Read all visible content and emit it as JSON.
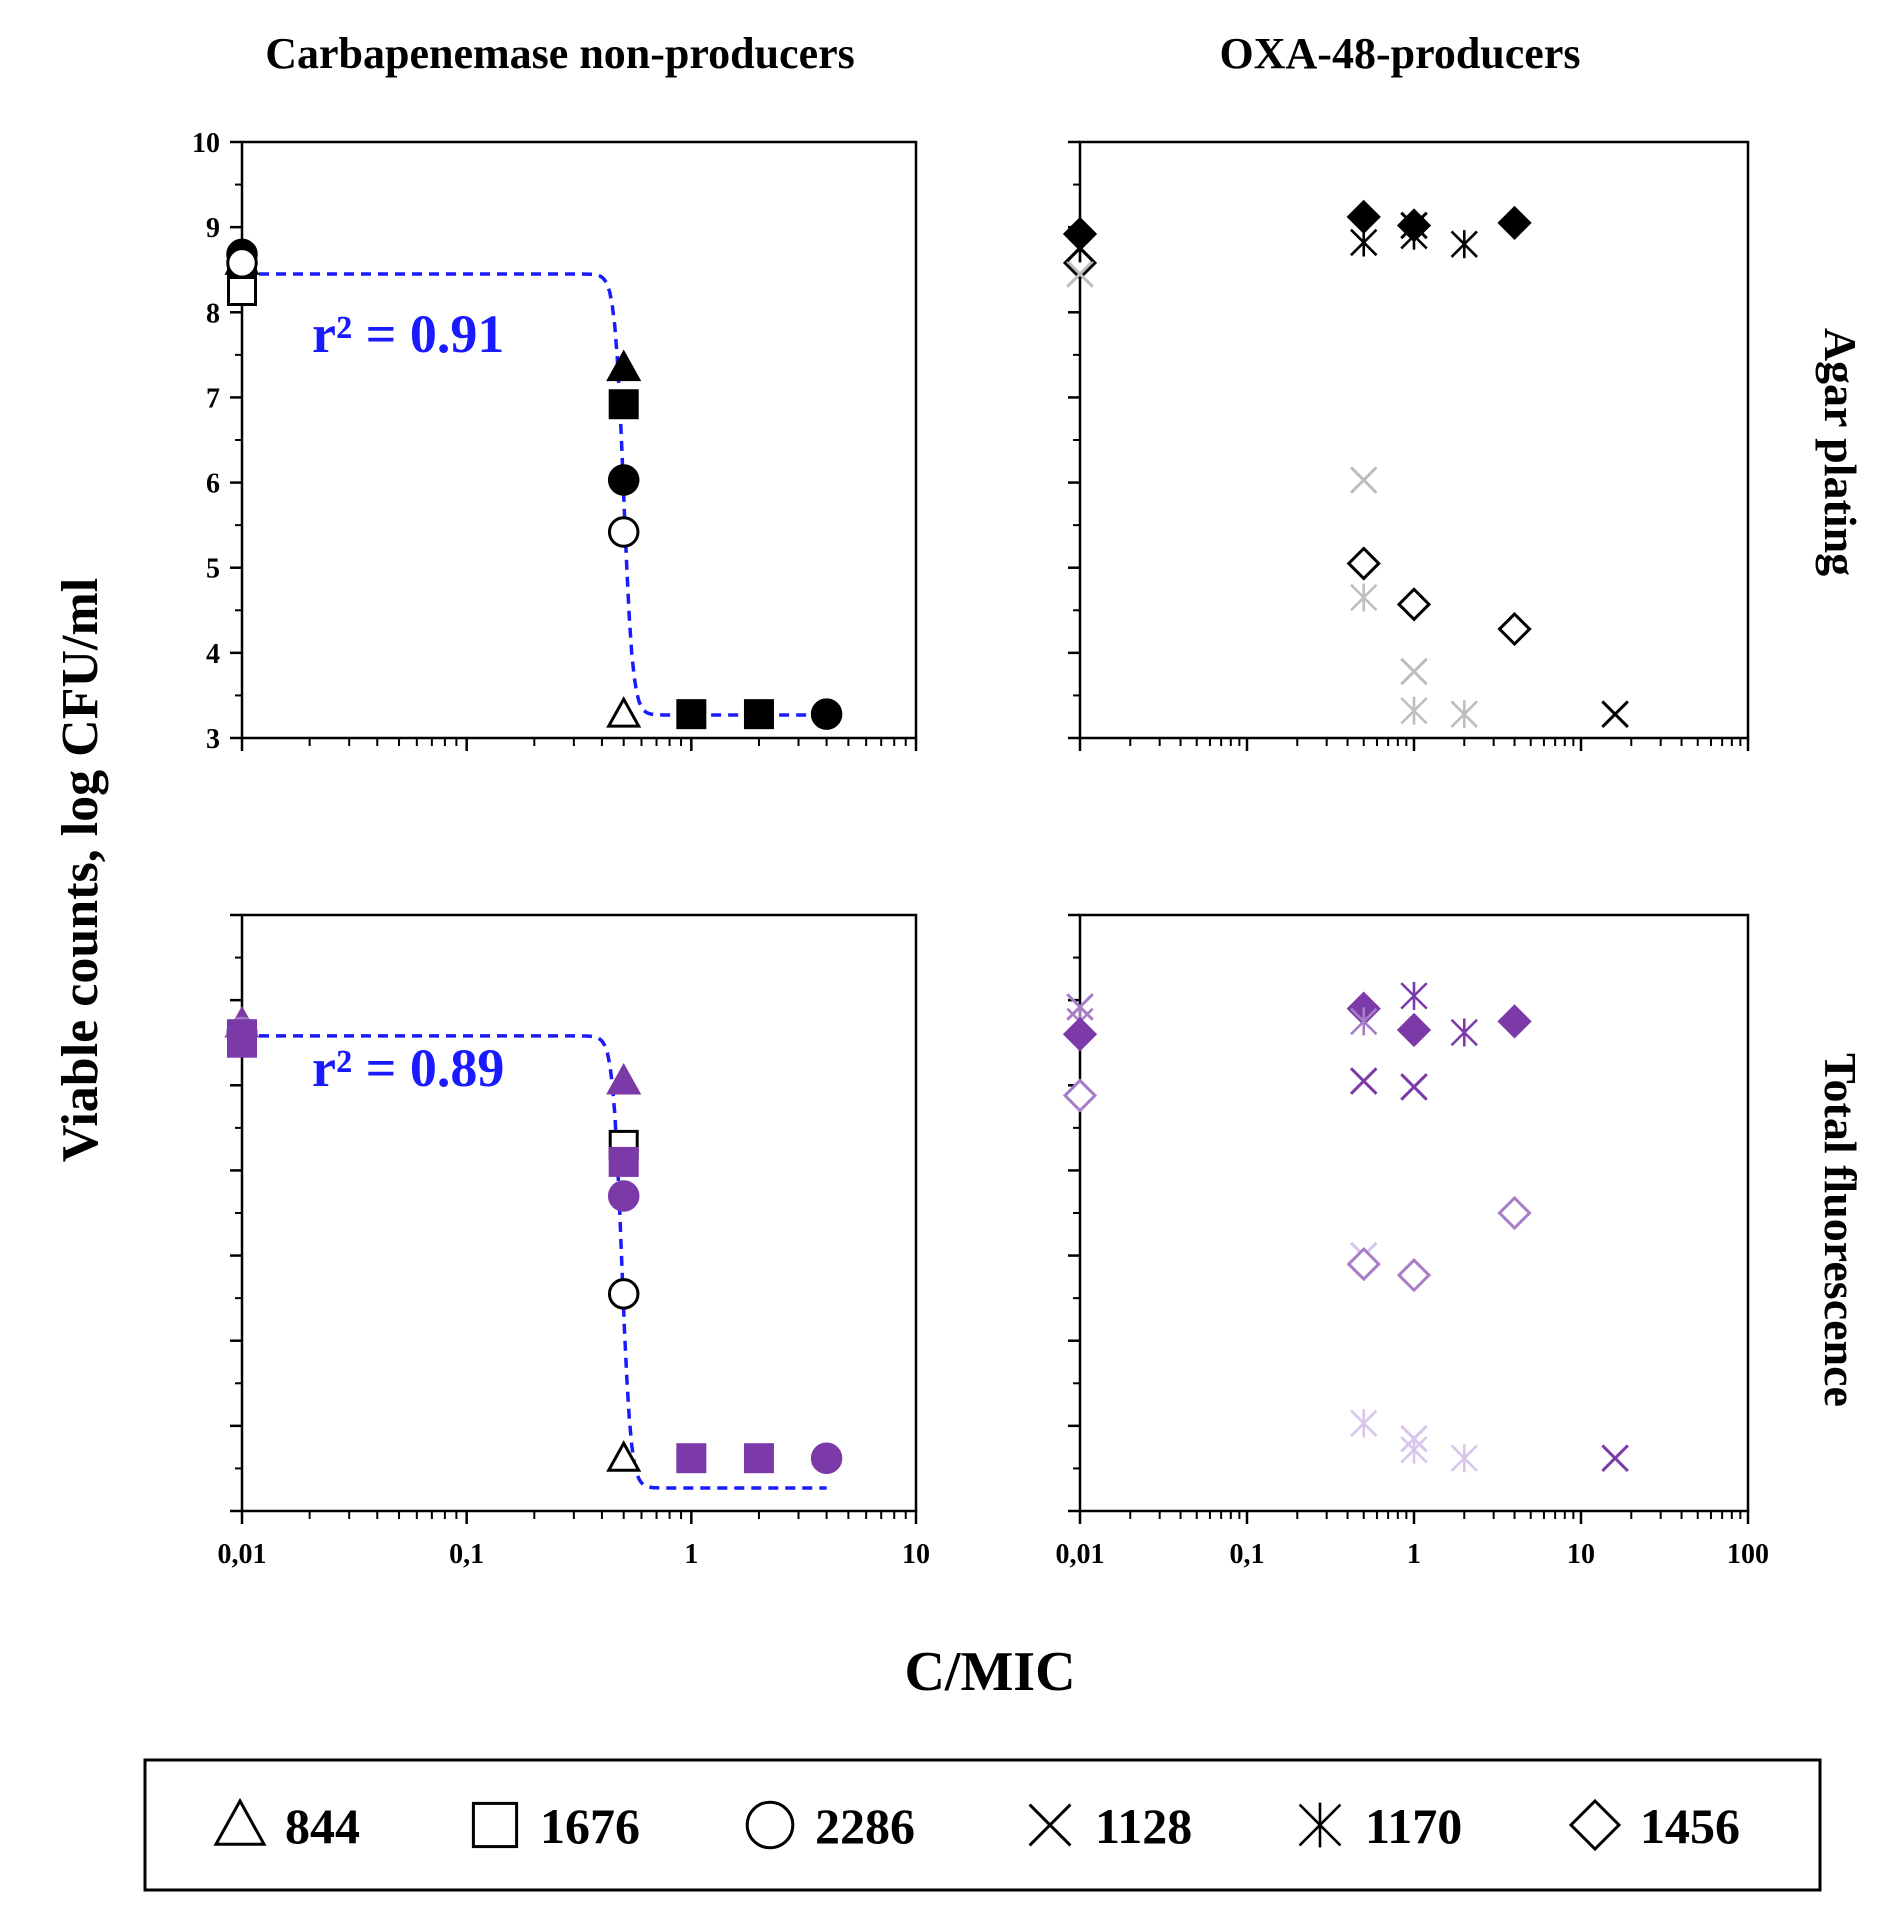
{
  "figure": {
    "col_titles": [
      "Carbapenemase  non-producers",
      "OXA-48-producers"
    ],
    "row_titles": [
      "Agar plating",
      "Total fluorescence"
    ],
    "ylabel": "Viable counts, log CFU/ml",
    "xlabel": "C/MIC",
    "legend": [
      {
        "label": "844",
        "marker": "triangle-open"
      },
      {
        "label": "1676",
        "marker": "square-open"
      },
      {
        "label": "2286",
        "marker": "circle-open"
      },
      {
        "label": "1128",
        "marker": "x"
      },
      {
        "label": "1170",
        "marker": "asterisk"
      },
      {
        "label": "1456",
        "marker": "diamond-open"
      }
    ]
  },
  "colors": {
    "fit_line": "#1a1aff",
    "black": "#000000",
    "gray": "#bdbdbd",
    "purple": "#7b3aa8",
    "purple_light": "#a77dc7",
    "purple_pale": "#d9c6ea"
  },
  "chart_data": [
    {
      "id": "top-left",
      "type": "scatter",
      "title": "Carbapenemase  non-producers",
      "xscale": "log",
      "xlim": [
        0.01,
        10
      ],
      "ylim": [
        3,
        10
      ],
      "yticks": [
        3,
        4,
        5,
        6,
        7,
        8,
        9,
        10
      ],
      "show_y_ticklabels": true,
      "show_x_ticklabels": false,
      "fit": {
        "r2_label": "r² = 0.91",
        "top": 8.45,
        "bottom": 3.27,
        "ec50": 0.5,
        "slope": 22,
        "color": "fit_line"
      },
      "points": [
        {
          "strain": "844",
          "marker": "triangle",
          "fill": "black",
          "x": 0.01,
          "y": 8.6
        },
        {
          "strain": "1676",
          "marker": "square",
          "fill": "black",
          "x": 0.01,
          "y": 8.35
        },
        {
          "strain": "1676",
          "marker": "square",
          "fill": "white",
          "x": 0.01,
          "y": 8.25
        },
        {
          "strain": "2286",
          "marker": "circle",
          "fill": "black",
          "x": 0.01,
          "y": 8.68
        },
        {
          "strain": "2286",
          "marker": "circle",
          "fill": "white",
          "x": 0.01,
          "y": 8.58
        },
        {
          "strain": "844",
          "marker": "triangle",
          "fill": "black",
          "x": 0.5,
          "y": 7.35
        },
        {
          "strain": "1676",
          "marker": "square",
          "fill": "black",
          "x": 0.5,
          "y": 6.92
        },
        {
          "strain": "2286",
          "marker": "circle",
          "fill": "black",
          "x": 0.5,
          "y": 6.03
        },
        {
          "strain": "2286",
          "marker": "circle",
          "fill": "white",
          "x": 0.5,
          "y": 5.42
        },
        {
          "strain": "844",
          "marker": "triangle",
          "fill": "white",
          "x": 0.5,
          "y": 3.28
        },
        {
          "strain": "1676",
          "marker": "square",
          "fill": "black",
          "x": 1,
          "y": 3.28
        },
        {
          "strain": "1676",
          "marker": "square",
          "fill": "black",
          "x": 2,
          "y": 3.28
        },
        {
          "strain": "2286",
          "marker": "circle",
          "fill": "black",
          "x": 4,
          "y": 3.28
        }
      ]
    },
    {
      "id": "top-right",
      "type": "scatter",
      "title": "OXA-48-producers",
      "row_title": "Agar plating",
      "xscale": "log",
      "xlim": [
        0.01,
        100
      ],
      "ylim": [
        3,
        10
      ],
      "yticks": [
        3,
        4,
        5,
        6,
        7,
        8,
        9,
        10
      ],
      "show_y_ticklabels": false,
      "show_x_ticklabels": false,
      "points": [
        {
          "strain": "1456",
          "marker": "diamond",
          "fill": "black",
          "x": 0.01,
          "y": 8.92
        },
        {
          "strain": "1456",
          "marker": "diamond",
          "fill": "white",
          "x": 0.01,
          "y": 8.58
        },
        {
          "strain": "1128",
          "marker": "x",
          "color": "gray",
          "x": 0.01,
          "y": 8.45
        },
        {
          "strain": "1170",
          "marker": "asterisk",
          "color": "black",
          "x": 0.01,
          "y": 8.75
        },
        {
          "strain": "1456",
          "marker": "diamond",
          "fill": "black",
          "x": 0.5,
          "y": 9.12
        },
        {
          "strain": "1170",
          "marker": "asterisk",
          "color": "black",
          "x": 0.5,
          "y": 8.82
        },
        {
          "strain": "1456",
          "marker": "diamond",
          "fill": "black",
          "x": 1,
          "y": 9.02
        },
        {
          "strain": "1128",
          "marker": "x",
          "color": "black",
          "x": 1,
          "y": 9.02
        },
        {
          "strain": "1170",
          "marker": "asterisk",
          "color": "black",
          "x": 1,
          "y": 8.9
        },
        {
          "strain": "1170",
          "marker": "asterisk",
          "color": "black",
          "x": 2,
          "y": 8.8
        },
        {
          "strain": "1456",
          "marker": "diamond",
          "fill": "black",
          "x": 4,
          "y": 9.05
        },
        {
          "strain": "1128",
          "marker": "x",
          "color": "gray",
          "x": 0.5,
          "y": 6.03
        },
        {
          "strain": "1456",
          "marker": "diamond",
          "fill": "white",
          "x": 0.5,
          "y": 5.05
        },
        {
          "strain": "1170",
          "marker": "asterisk",
          "color": "gray",
          "x": 0.5,
          "y": 4.65
        },
        {
          "strain": "1456",
          "marker": "diamond",
          "fill": "white",
          "x": 1,
          "y": 4.57
        },
        {
          "strain": "1128",
          "marker": "x",
          "color": "gray",
          "x": 1,
          "y": 3.78
        },
        {
          "strain": "1170",
          "marker": "asterisk",
          "color": "gray",
          "x": 1,
          "y": 3.32
        },
        {
          "strain": "1456",
          "marker": "diamond",
          "fill": "white",
          "x": 4,
          "y": 4.28
        },
        {
          "strain": "1170",
          "marker": "asterisk",
          "color": "gray",
          "x": 2,
          "y": 3.28
        },
        {
          "strain": "1128",
          "marker": "x",
          "color": "black",
          "x": 16,
          "y": 3.28
        }
      ]
    },
    {
      "id": "bottom-left",
      "type": "scatter",
      "xscale": "log",
      "xlim": [
        0.01,
        10
      ],
      "xticklabels": [
        "0,01",
        "0,1",
        "1",
        "10"
      ],
      "ylim": [
        3,
        10
      ],
      "yticks": [
        3,
        4,
        5,
        6,
        7,
        8,
        9,
        10
      ],
      "show_y_ticklabels": false,
      "show_x_ticklabels": true,
      "fit": {
        "r2_label": "r² = 0.89",
        "top": 8.58,
        "bottom": 3.27,
        "ec50": 0.49,
        "slope": 22,
        "color": "fit_line"
      },
      "points": [
        {
          "strain": "844",
          "marker": "triangle",
          "fill": "purple",
          "x": 0.01,
          "y": 8.72
        },
        {
          "strain": "2286",
          "marker": "circle",
          "fill": "purple_light",
          "x": 0.01,
          "y": 8.62
        },
        {
          "strain": "1676",
          "marker": "square",
          "fill": "purple",
          "x": 0.01,
          "y": 8.5
        },
        {
          "strain": "1676",
          "marker": "square",
          "fill": "purple",
          "x": 0.01,
          "y": 8.6
        },
        {
          "strain": "844",
          "marker": "triangle",
          "fill": "purple",
          "x": 0.5,
          "y": 8.05
        },
        {
          "strain": "1676",
          "marker": "square",
          "fill": "white",
          "x": 0.5,
          "y": 7.3
        },
        {
          "strain": "1676",
          "marker": "square",
          "fill": "purple",
          "x": 0.5,
          "y": 7.1
        },
        {
          "strain": "2286",
          "marker": "circle",
          "fill": "purple",
          "x": 0.5,
          "y": 6.7
        },
        {
          "strain": "2286",
          "marker": "circle",
          "fill": "white",
          "x": 0.5,
          "y": 5.55
        },
        {
          "strain": "844",
          "marker": "triangle",
          "fill": "white",
          "x": 0.5,
          "y": 3.62
        },
        {
          "strain": "1676",
          "marker": "square",
          "fill": "purple",
          "x": 1,
          "y": 3.62
        },
        {
          "strain": "1676",
          "marker": "square",
          "fill": "purple",
          "x": 2,
          "y": 3.62
        },
        {
          "strain": "2286",
          "marker": "circle",
          "fill": "purple",
          "x": 4,
          "y": 3.62
        }
      ]
    },
    {
      "id": "bottom-right",
      "type": "scatter",
      "row_title": "Total fluorescence",
      "xscale": "log",
      "xlim": [
        0.01,
        100
      ],
      "xticklabels": [
        "0,01",
        "0,1",
        "1",
        "10",
        "100"
      ],
      "ylim": [
        3,
        10
      ],
      "yticks": [
        3,
        4,
        5,
        6,
        7,
        8,
        9,
        10
      ],
      "show_y_ticklabels": false,
      "show_x_ticklabels": true,
      "points": [
        {
          "strain": "1128",
          "marker": "x",
          "color": "purple_light",
          "x": 0.01,
          "y": 8.92
        },
        {
          "strain": "1170",
          "marker": "asterisk",
          "color": "purple_light",
          "x": 0.01,
          "y": 8.75
        },
        {
          "strain": "1456",
          "marker": "diamond",
          "fill": "purple",
          "x": 0.01,
          "y": 8.6
        },
        {
          "strain": "1456",
          "marker": "diamond",
          "fill": "white",
          "stroke": "purple_light",
          "x": 0.01,
          "y": 7.88
        },
        {
          "strain": "1456",
          "marker": "diamond",
          "fill": "purple",
          "x": 0.5,
          "y": 8.9
        },
        {
          "strain": "1170",
          "marker": "asterisk",
          "color": "purple_light",
          "x": 0.5,
          "y": 8.75
        },
        {
          "strain": "1128",
          "marker": "x",
          "color": "purple",
          "x": 0.5,
          "y": 8.05
        },
        {
          "strain": "1170",
          "marker": "asterisk",
          "color": "purple",
          "x": 1,
          "y": 9.05
        },
        {
          "strain": "1456",
          "marker": "diamond",
          "fill": "purple",
          "x": 1,
          "y": 8.65
        },
        {
          "strain": "1128",
          "marker": "x",
          "color": "purple",
          "x": 1,
          "y": 7.98
        },
        {
          "strain": "1170",
          "marker": "asterisk",
          "color": "purple",
          "x": 2,
          "y": 8.62
        },
        {
          "strain": "1456",
          "marker": "diamond",
          "fill": "purple",
          "x": 4,
          "y": 8.75
        },
        {
          "strain": "1456",
          "marker": "diamond",
          "fill": "white",
          "stroke": "purple_light",
          "x": 4,
          "y": 6.5
        },
        {
          "strain": "1128",
          "marker": "x",
          "color": "purple_pale",
          "x": 0.5,
          "y": 6.0
        },
        {
          "strain": "1456",
          "marker": "diamond",
          "fill": "white",
          "stroke": "purple_light",
          "x": 0.5,
          "y": 5.9
        },
        {
          "strain": "1456",
          "marker": "diamond",
          "fill": "white",
          "stroke": "purple_light",
          "x": 1,
          "y": 5.77
        },
        {
          "strain": "1170",
          "marker": "asterisk",
          "color": "purple_pale",
          "x": 0.5,
          "y": 4.03
        },
        {
          "strain": "1128",
          "marker": "x",
          "color": "purple_pale",
          "x": 1,
          "y": 3.85
        },
        {
          "strain": "1170",
          "marker": "asterisk",
          "color": "purple_pale",
          "x": 1,
          "y": 3.72
        },
        {
          "strain": "1170",
          "marker": "asterisk",
          "color": "purple_pale",
          "x": 2,
          "y": 3.62
        },
        {
          "strain": "1128",
          "marker": "x",
          "color": "purple",
          "x": 16,
          "y": 3.62
        }
      ]
    }
  ]
}
